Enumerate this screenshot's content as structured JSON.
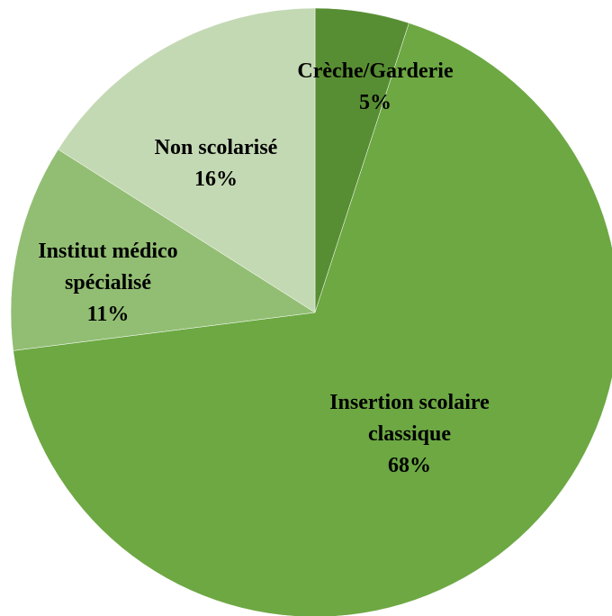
{
  "chart_data": {
    "type": "pie",
    "categories": [
      "Crèche/Garderie",
      "Insertion scolaire classique",
      "Institut médico spécialisé",
      "Non scolarisé"
    ],
    "values": [
      5,
      68,
      11,
      16
    ],
    "value_labels": [
      "5%",
      "68%",
      "11%",
      "16%"
    ],
    "colors": [
      "#588e33",
      "#6da843",
      "#92be73",
      "#c3d9b3"
    ]
  }
}
